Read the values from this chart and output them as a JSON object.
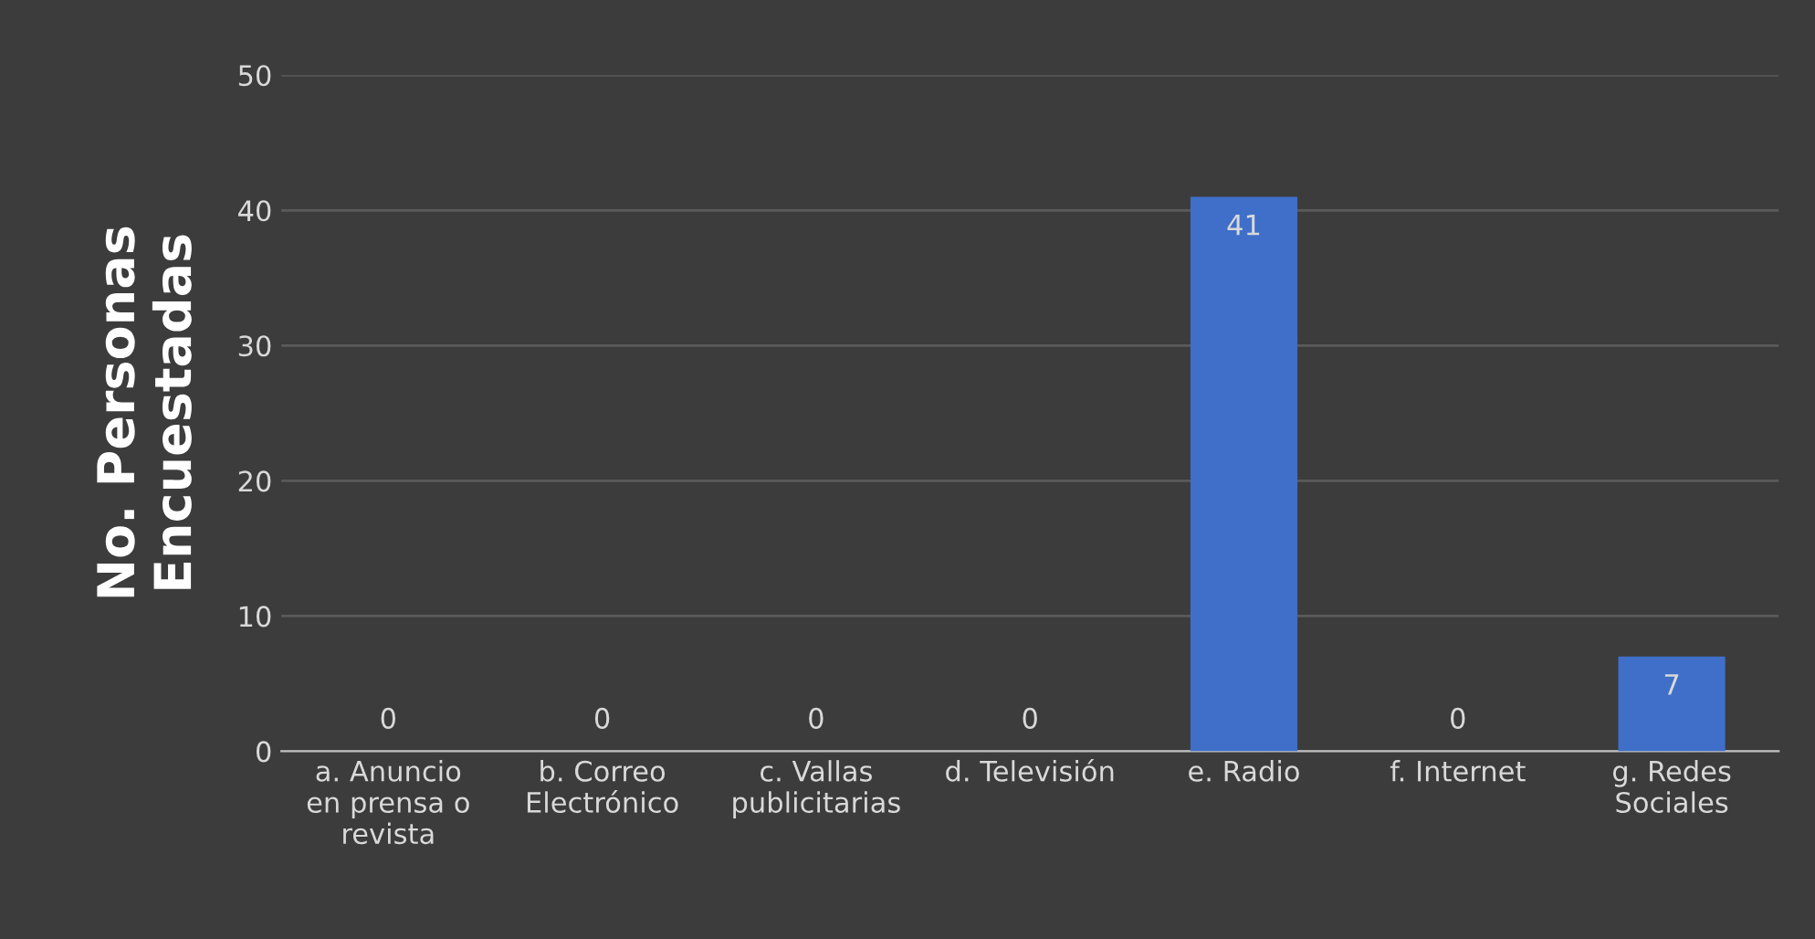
{
  "chart_data": {
    "type": "bar",
    "ylabel": "No. Personas\nEncuestadas",
    "categories": [
      "a. Anuncio\nen prensa o\nrevista",
      "b. Correo\nElectrónico",
      "c. Vallas\npublicitarias",
      "d. Televisión",
      "e. Radio",
      "f. Internet",
      "g. Redes\nSociales"
    ],
    "values": [
      0,
      0,
      0,
      0,
      41,
      0,
      7
    ],
    "color": "#3f6fc9",
    "ylim": [
      0,
      50
    ],
    "yticks": [
      0,
      10,
      20,
      30,
      40,
      50
    ],
    "grid": "y",
    "data_labels": true
  }
}
